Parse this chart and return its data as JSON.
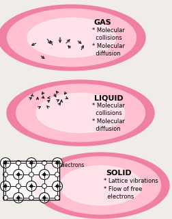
{
  "bg_color": "#f0ede8",
  "blob_outer": "#f080a0",
  "blob_inner": "#ffc0d0",
  "blob_center": "#fff0f4",
  "text_color": "#000000",
  "arrow_color": "#222222",
  "gas_title": "GAS",
  "gas_bullets": "* Molecular\ncollisions\n* Molecular\ndiffusion",
  "liquid_title": "LIQUID",
  "liquid_bullets": "* Molecular\ncollisions\n* Molecular\ndiffusion",
  "solid_title": "SOLID",
  "solid_bullet1": "* Lattice vibrations",
  "solid_bullet2": "* Flow of free\n  electrons",
  "electrons_label": "electrons",
  "gas_arrows": [
    [
      55,
      62,
      -12,
      6
    ],
    [
      68,
      55,
      8,
      12
    ],
    [
      78,
      68,
      -6,
      -12
    ],
    [
      88,
      52,
      0,
      14
    ],
    [
      95,
      65,
      10,
      -10
    ],
    [
      105,
      72,
      -8,
      -8
    ],
    [
      112,
      58,
      10,
      8
    ],
    [
      118,
      75,
      6,
      -12
    ],
    [
      58,
      80,
      10,
      8
    ]
  ],
  "liquid_arrows": [
    [
      42,
      145,
      8,
      -4
    ],
    [
      50,
      138,
      -8,
      4
    ],
    [
      55,
      148,
      0,
      -10
    ],
    [
      60,
      140,
      8,
      6
    ],
    [
      65,
      133,
      -6,
      8
    ],
    [
      68,
      150,
      8,
      -6
    ],
    [
      74,
      143,
      -8,
      0
    ],
    [
      78,
      135,
      6,
      10
    ],
    [
      82,
      148,
      8,
      -4
    ],
    [
      86,
      138,
      -6,
      -8
    ],
    [
      90,
      152,
      0,
      -10
    ],
    [
      95,
      142,
      8,
      4
    ],
    [
      98,
      133,
      -6,
      8
    ],
    [
      55,
      158,
      8,
      -4
    ],
    [
      72,
      158,
      -6,
      -6
    ],
    [
      85,
      155,
      6,
      -8
    ]
  ]
}
